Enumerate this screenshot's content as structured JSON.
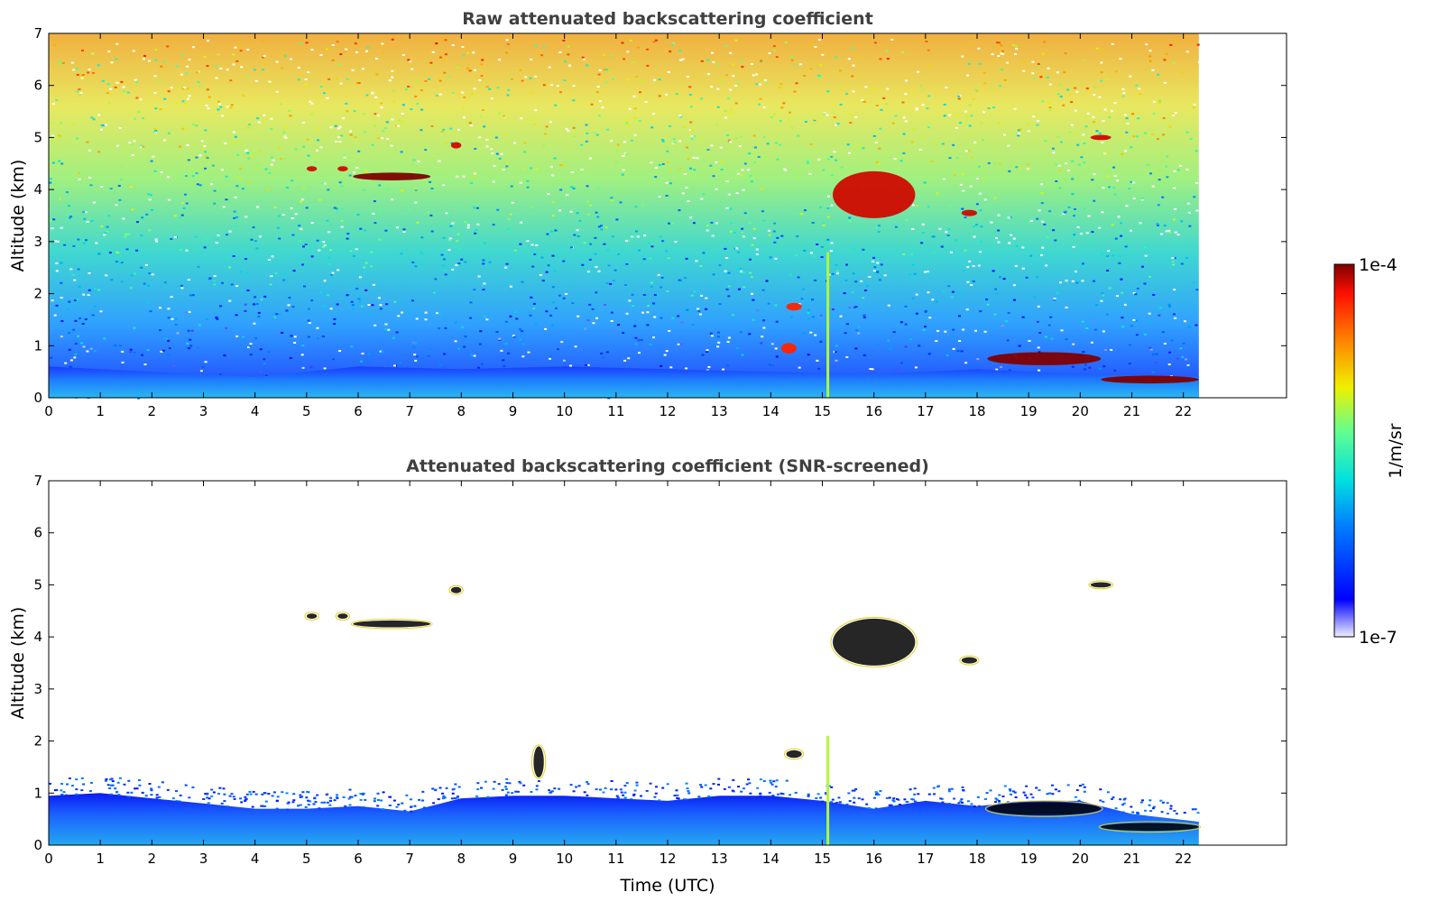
{
  "chart_data": [
    {
      "type": "heatmap",
      "title": "Raw attenuated backscattering coefficient",
      "xlabel": "",
      "ylabel": "Altitude (km)",
      "xlim": [
        0,
        24
      ],
      "ylim": [
        0,
        7
      ],
      "xticks": [
        "0",
        "1",
        "2",
        "3",
        "4",
        "5",
        "6",
        "7",
        "8",
        "9",
        "10",
        "11",
        "12",
        "13",
        "14",
        "15",
        "16",
        "17",
        "18",
        "19",
        "20",
        "21",
        "22"
      ],
      "yticks": [
        "0",
        "1",
        "2",
        "3",
        "4",
        "5",
        "6",
        "7"
      ],
      "data_end_time": 22.3,
      "boundary_layer_top": [
        [
          0,
          0.6
        ],
        [
          2,
          0.5
        ],
        [
          4,
          0.4
        ],
        [
          6,
          0.6
        ],
        [
          8,
          0.55
        ],
        [
          10,
          0.6
        ],
        [
          12,
          0.55
        ],
        [
          14,
          0.5
        ],
        [
          16,
          0.45
        ],
        [
          18,
          0.55
        ],
        [
          20,
          0.45
        ],
        [
          22.3,
          0.4
        ]
      ],
      "features": [
        {
          "t0": 5.9,
          "t1": 7.4,
          "alt": 4.25,
          "thick": 0.15,
          "level": 1.0
        },
        {
          "t0": 5.0,
          "t1": 5.2,
          "alt": 4.4,
          "thick": 0.1,
          "level": 0.95
        },
        {
          "t0": 5.6,
          "t1": 5.8,
          "alt": 4.4,
          "thick": 0.1,
          "level": 0.95
        },
        {
          "t0": 7.8,
          "t1": 8.0,
          "alt": 4.85,
          "thick": 0.12,
          "level": 0.95
        },
        {
          "t0": 15.2,
          "t1": 16.8,
          "alt": 3.9,
          "thick": 0.9,
          "level": 0.95
        },
        {
          "t0": 17.7,
          "t1": 18.0,
          "alt": 3.55,
          "thick": 0.12,
          "level": 0.95
        },
        {
          "t0": 20.2,
          "t1": 20.6,
          "alt": 5.0,
          "thick": 0.1,
          "level": 0.95
        },
        {
          "t0": 14.3,
          "t1": 14.6,
          "alt": 1.75,
          "thick": 0.15,
          "level": 0.9
        },
        {
          "t0": 14.2,
          "t1": 14.5,
          "alt": 0.95,
          "thick": 0.2,
          "level": 0.9
        },
        {
          "t0": 18.2,
          "t1": 20.4,
          "alt": 0.75,
          "thick": 0.25,
          "level": 1.0
        },
        {
          "t0": 20.4,
          "t1": 22.3,
          "alt": 0.35,
          "thick": 0.15,
          "level": 1.0
        }
      ]
    },
    {
      "type": "heatmap",
      "title": "Attenuated backscattering coefficient (SNR-screened)",
      "xlabel": "Time (UTC)",
      "ylabel": "Altitude (km)",
      "xlim": [
        0,
        24
      ],
      "ylim": [
        0,
        7
      ],
      "xticks": [
        "0",
        "1",
        "2",
        "3",
        "4",
        "5",
        "6",
        "7",
        "8",
        "9",
        "10",
        "11",
        "12",
        "13",
        "14",
        "15",
        "16",
        "17",
        "18",
        "19",
        "20",
        "21",
        "22"
      ],
      "yticks": [
        "0",
        "1",
        "2",
        "3",
        "4",
        "5",
        "6",
        "7"
      ],
      "data_end_time": 22.3,
      "boundary_layer_top": [
        [
          0,
          0.95
        ],
        [
          1,
          1.0
        ],
        [
          2,
          0.9
        ],
        [
          3,
          0.8
        ],
        [
          4,
          0.7
        ],
        [
          5,
          0.7
        ],
        [
          6,
          0.75
        ],
        [
          7,
          0.65
        ],
        [
          8,
          0.9
        ],
        [
          9,
          0.95
        ],
        [
          10,
          0.95
        ],
        [
          11,
          0.9
        ],
        [
          12,
          0.85
        ],
        [
          13,
          0.95
        ],
        [
          14,
          0.95
        ],
        [
          15,
          0.85
        ],
        [
          16,
          0.7
        ],
        [
          17,
          0.85
        ],
        [
          18,
          0.75
        ],
        [
          19,
          0.85
        ],
        [
          20,
          0.85
        ],
        [
          21,
          0.6
        ],
        [
          22.3,
          0.45
        ]
      ],
      "features": [
        {
          "t0": 5.9,
          "t1": 7.4,
          "alt": 4.25,
          "thick": 0.13,
          "level": 1.0
        },
        {
          "t0": 5.0,
          "t1": 5.2,
          "alt": 4.4,
          "thick": 0.1,
          "level": 1.0
        },
        {
          "t0": 5.6,
          "t1": 5.8,
          "alt": 4.4,
          "thick": 0.1,
          "level": 1.0
        },
        {
          "t0": 7.8,
          "t1": 8.0,
          "alt": 4.9,
          "thick": 0.12,
          "level": 1.0
        },
        {
          "t0": 15.2,
          "t1": 16.8,
          "alt": 3.9,
          "thick": 0.9,
          "level": 1.0
        },
        {
          "t0": 17.7,
          "t1": 18.0,
          "alt": 3.55,
          "thick": 0.12,
          "level": 1.0
        },
        {
          "t0": 20.2,
          "t1": 20.6,
          "alt": 5.0,
          "thick": 0.1,
          "level": 1.0
        },
        {
          "t0": 14.3,
          "t1": 14.6,
          "alt": 1.75,
          "thick": 0.15,
          "level": 1.0
        },
        {
          "t0": 9.4,
          "t1": 9.6,
          "alt": 1.6,
          "thick": 0.6,
          "level": 0.9
        },
        {
          "t0": 18.2,
          "t1": 20.4,
          "alt": 0.7,
          "thick": 0.25,
          "level": 1.0
        },
        {
          "t0": 20.4,
          "t1": 22.3,
          "alt": 0.35,
          "thick": 0.15,
          "level": 1.0
        }
      ]
    }
  ],
  "colorbar": {
    "label": "1/m/sr",
    "min_label": "1e-7",
    "max_label": "1e-4",
    "colormap": "jet",
    "scale": "log"
  }
}
